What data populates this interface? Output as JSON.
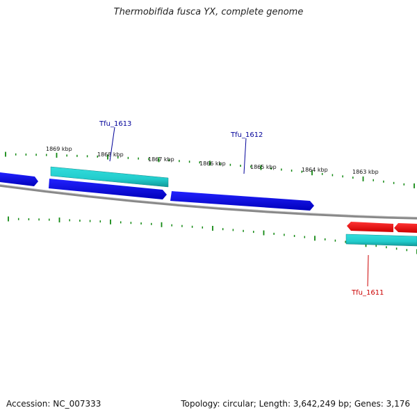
{
  "title": "Thermobifida fusca YX, complete genome",
  "footer": {
    "accession": "Accession: NC_007333",
    "summary": "Topology: circular; Length: 3,642,249 bp; Genes: 3,176"
  },
  "ruler": {
    "labels": [
      "1869 kbp",
      "1868 kbp",
      "1867 kbp",
      "1866 kbp",
      "1865 kbp",
      "1864 kbp",
      "1863 kbp"
    ]
  },
  "genes": {
    "forward_label": "Tfu_1613",
    "forward_label_2": "Tfu_1612",
    "reverse_label": "Tfu_1611"
  },
  "colors": {
    "forward_gene": "#0000ee",
    "reverse_gene": "#ee0000",
    "cds_region": "#22cccc",
    "backbone": "#888888",
    "tick": "#118811",
    "forward_label": "#000099",
    "reverse_label": "#cc0000"
  }
}
